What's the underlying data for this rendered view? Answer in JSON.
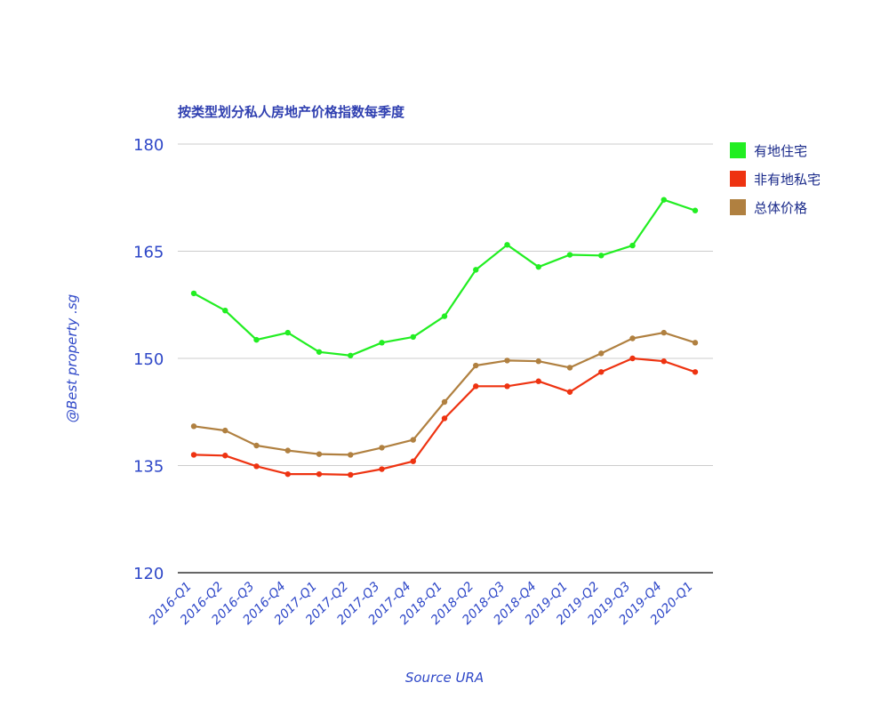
{
  "chart_data": {
    "type": "line",
    "title": "按类型划分私人房地产价格指数每季度",
    "xlabel": "Source URA",
    "ylabel": "@Best property .sg",
    "ylim": [
      120,
      180
    ],
    "yticks": [
      "120",
      "135",
      "150",
      "165",
      "180"
    ],
    "categories": [
      "2016-Q1",
      "2016-Q2",
      "2016-Q3",
      "2016-Q4",
      "2017-Q1",
      "2017-Q2",
      "2017-Q3",
      "2017-Q4",
      "2018-Q1",
      "2018-Q2",
      "2018-Q3",
      "2018-Q4",
      "2019-Q1",
      "2019-Q2",
      "2019-Q3",
      "2019-Q4",
      "2020-Q1"
    ],
    "grid": true,
    "legend_position": "right",
    "series": [
      {
        "name": "有地住宅",
        "color": "#22ee22",
        "values": [
          159.1,
          156.7,
          152.6,
          153.6,
          150.9,
          150.4,
          152.2,
          153.0,
          155.9,
          162.4,
          165.9,
          162.8,
          164.5,
          164.4,
          165.8,
          172.2,
          170.7
        ]
      },
      {
        "name": "非有地私宅",
        "color": "#ee3311",
        "values": [
          136.5,
          136.4,
          134.9,
          133.8,
          133.8,
          133.7,
          134.5,
          135.6,
          141.6,
          146.1,
          146.1,
          146.8,
          145.3,
          148.1,
          150.0,
          149.6,
          148.1
        ]
      },
      {
        "name": "总体价格",
        "color": "#b08040",
        "values": [
          140.5,
          139.9,
          137.8,
          137.1,
          136.6,
          136.5,
          137.5,
          138.6,
          143.9,
          149.0,
          149.7,
          149.6,
          148.7,
          150.7,
          152.8,
          153.6,
          152.2
        ]
      }
    ]
  }
}
